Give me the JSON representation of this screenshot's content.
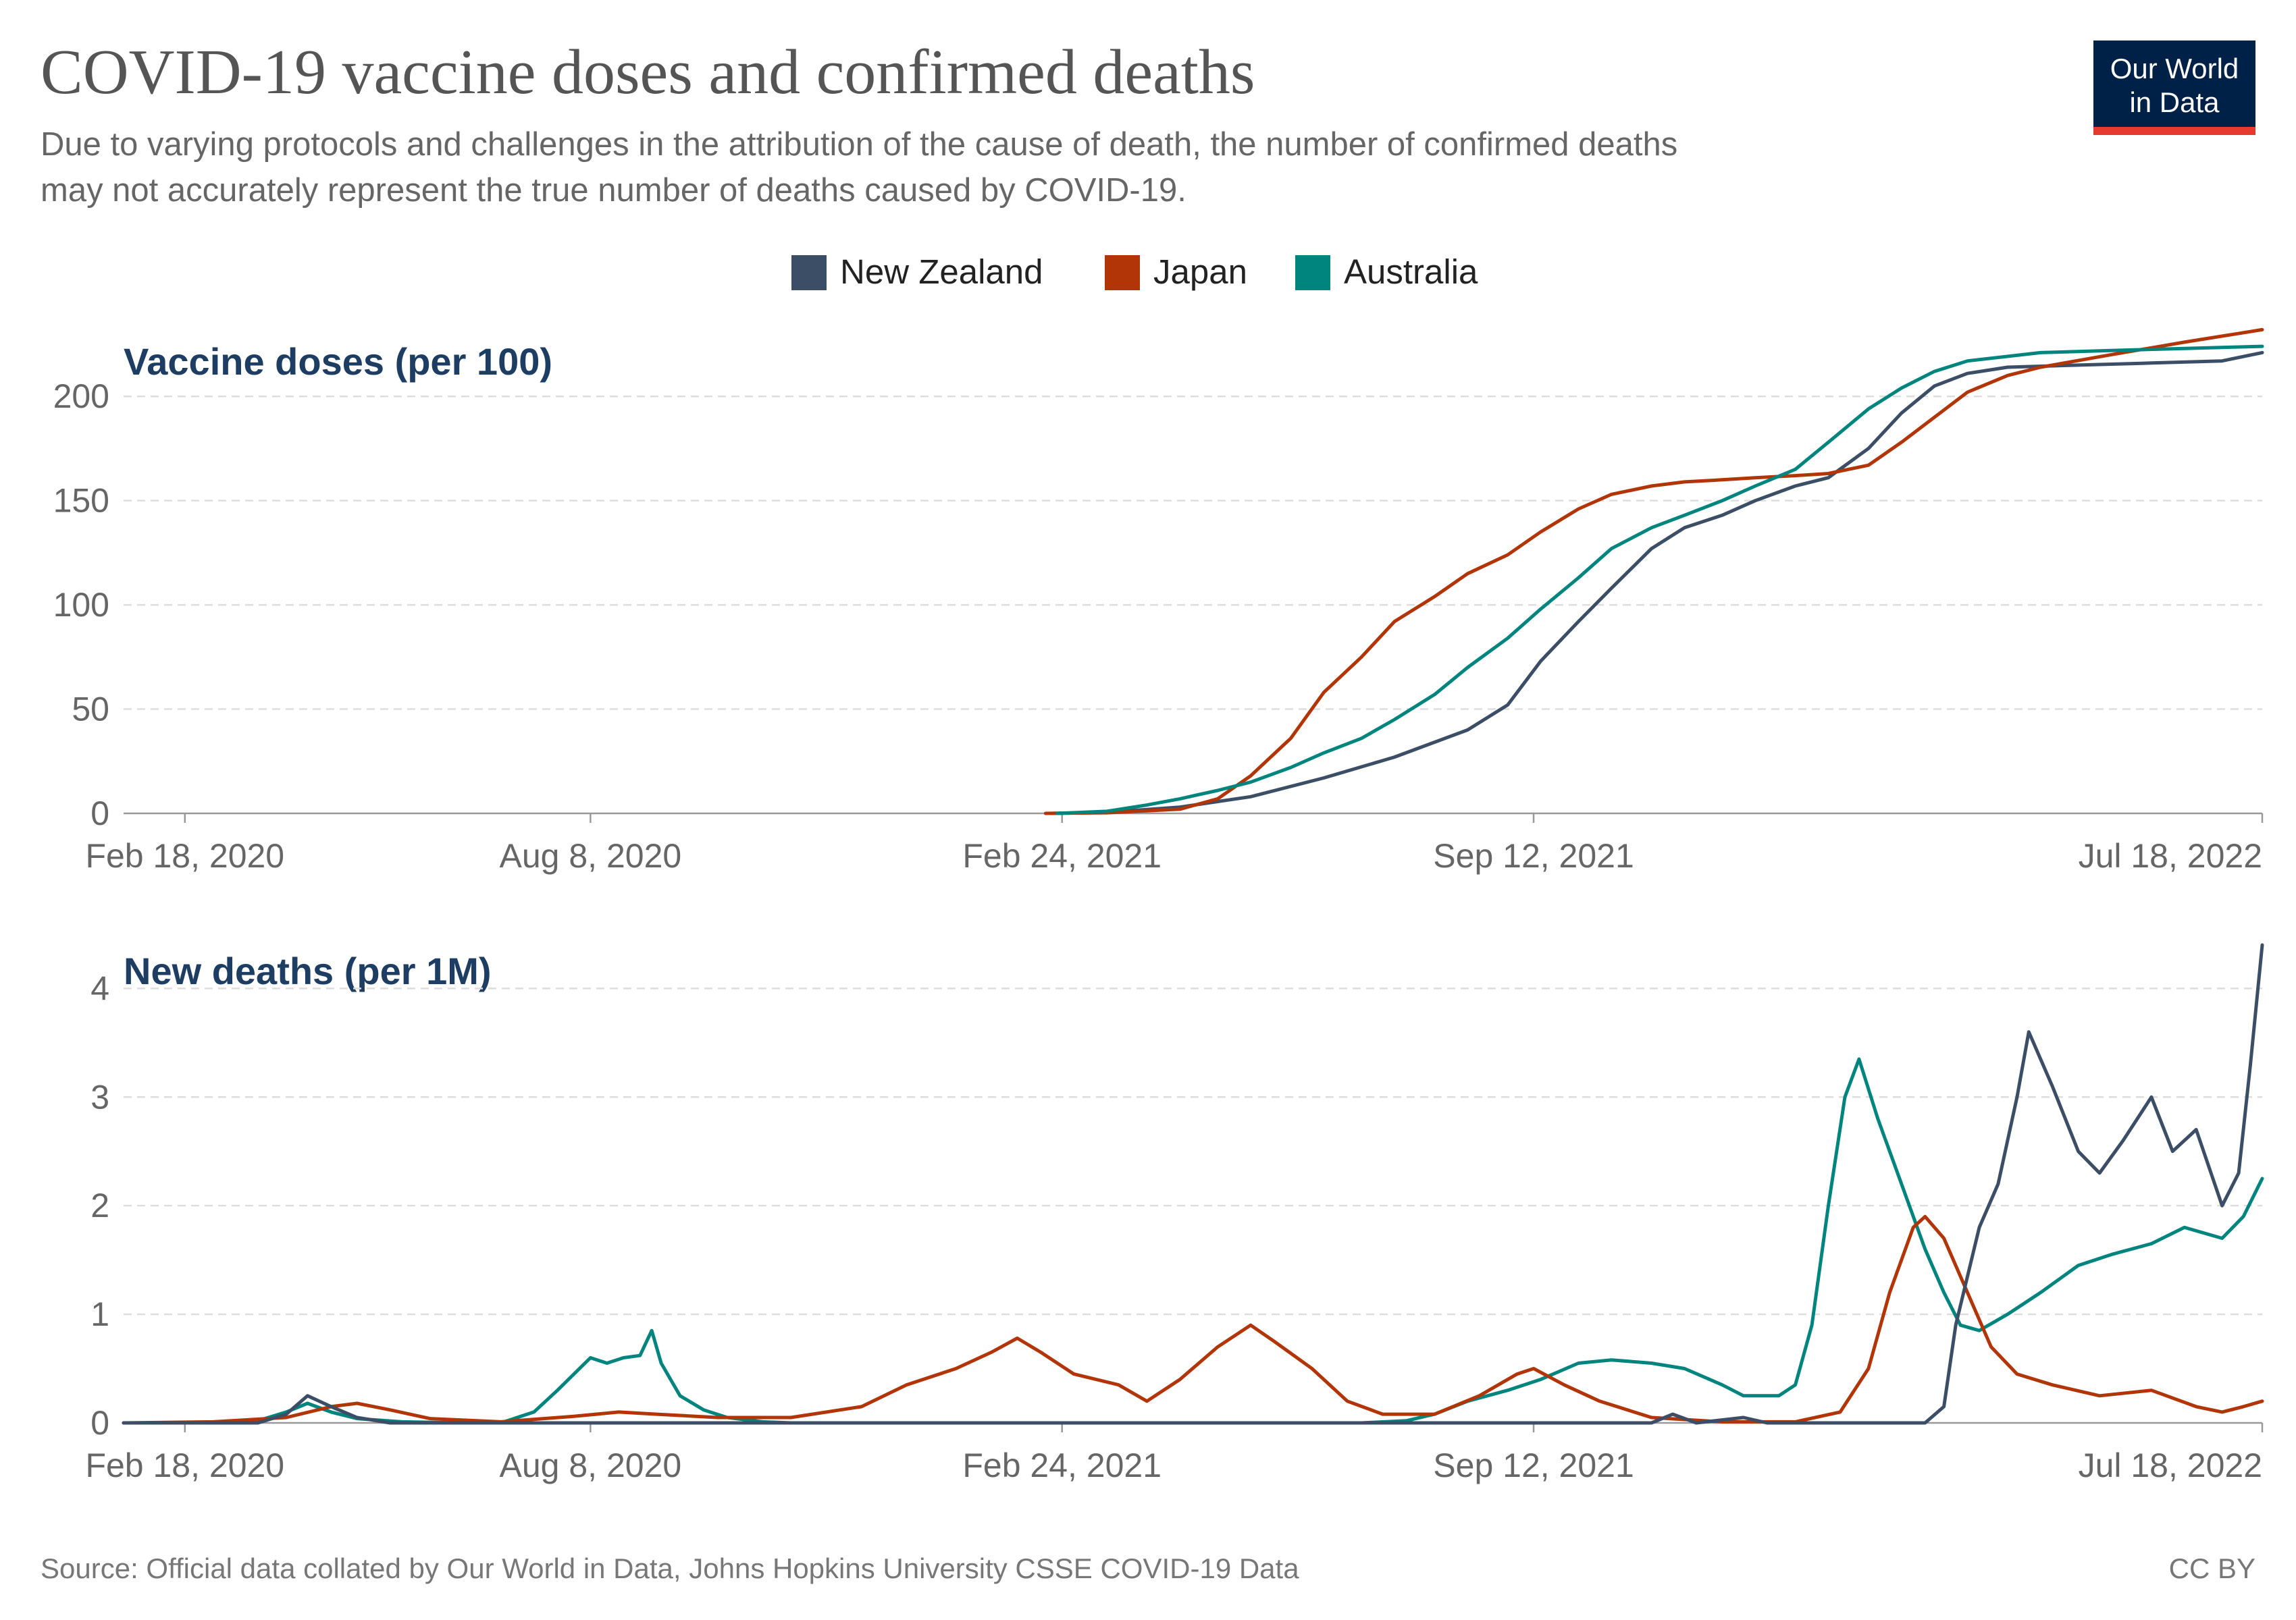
{
  "title": "COVID-19 vaccine doses and confirmed deaths",
  "subtitle": [
    "Due to varying protocols and challenges in the attribution of the cause of death, the number of confirmed deaths",
    "may not accurately represent the true number of deaths caused by COVID-19."
  ],
  "logo": {
    "line1": "Our World",
    "line2": "in Data",
    "bg": "#002147",
    "accent": "#e63a2e"
  },
  "source": "Source: Official data collated by Our World in Data, Johns Hopkins University CSSE COVID-19 Data",
  "license": "CC BY",
  "colors": {
    "New Zealand": "#3c4e66",
    "Japan": "#b13507",
    "Australia": "#00847e"
  },
  "legend": [
    "New Zealand",
    "Japan",
    "Australia"
  ],
  "chart_data": [
    {
      "type": "line",
      "title": "Vaccine doses (per 100)",
      "x_range": [
        "2020-01-23",
        "2022-07-18"
      ],
      "x_ticks": [
        {
          "date": "2020-02-18",
          "label": "Feb 18, 2020"
        },
        {
          "date": "2020-08-08",
          "label": "Aug 8, 2020"
        },
        {
          "date": "2021-02-24",
          "label": "Feb 24, 2021"
        },
        {
          "date": "2021-09-12",
          "label": "Sep 12, 2021"
        },
        {
          "date": "2022-07-18",
          "label": "Jul 18, 2022"
        }
      ],
      "ylim": [
        0,
        225
      ],
      "y_ticks": [
        0,
        50,
        100,
        150,
        200
      ],
      "grid": true,
      "series": [
        {
          "name": "New Zealand",
          "points": [
            [
              "2021-02-19",
              0
            ],
            [
              "2021-03-15",
              0.5
            ],
            [
              "2021-04-15",
              3
            ],
            [
              "2021-05-15",
              8
            ],
            [
              "2021-06-15",
              17
            ],
            [
              "2021-07-15",
              27
            ],
            [
              "2021-08-15",
              40
            ],
            [
              "2021-09-01",
              52
            ],
            [
              "2021-09-15",
              73
            ],
            [
              "2021-10-01",
              92
            ],
            [
              "2021-10-15",
              108
            ],
            [
              "2021-11-01",
              127
            ],
            [
              "2021-11-15",
              137
            ],
            [
              "2021-12-01",
              143
            ],
            [
              "2021-12-15",
              150
            ],
            [
              "2022-01-01",
              157
            ],
            [
              "2022-01-15",
              161
            ],
            [
              "2022-02-01",
              175
            ],
            [
              "2022-02-15",
              192
            ],
            [
              "2022-03-01",
              205
            ],
            [
              "2022-03-15",
              211
            ],
            [
              "2022-04-01",
              214
            ],
            [
              "2022-05-01",
              215
            ],
            [
              "2022-06-01",
              216
            ],
            [
              "2022-07-01",
              217
            ],
            [
              "2022-07-18",
              221
            ]
          ]
        },
        {
          "name": "Japan",
          "points": [
            [
              "2021-02-17",
              0
            ],
            [
              "2021-03-15",
              0.3
            ],
            [
              "2021-04-15",
              2
            ],
            [
              "2021-05-01",
              7
            ],
            [
              "2021-05-15",
              18
            ],
            [
              "2021-06-01",
              36
            ],
            [
              "2021-06-15",
              58
            ],
            [
              "2021-07-01",
              75
            ],
            [
              "2021-07-15",
              92
            ],
            [
              "2021-08-01",
              104
            ],
            [
              "2021-08-15",
              115
            ],
            [
              "2021-09-01",
              124
            ],
            [
              "2021-09-15",
              135
            ],
            [
              "2021-10-01",
              146
            ],
            [
              "2021-10-15",
              153
            ],
            [
              "2021-11-01",
              157
            ],
            [
              "2021-11-15",
              159
            ],
            [
              "2021-12-01",
              160
            ],
            [
              "2021-12-15",
              161
            ],
            [
              "2022-01-01",
              162
            ],
            [
              "2022-01-15",
              163
            ],
            [
              "2022-02-01",
              167
            ],
            [
              "2022-02-15",
              178
            ],
            [
              "2022-03-01",
              190
            ],
            [
              "2022-03-15",
              202
            ],
            [
              "2022-04-01",
              210
            ],
            [
              "2022-04-15",
              214
            ],
            [
              "2022-05-15",
              220
            ],
            [
              "2022-06-15",
              226
            ],
            [
              "2022-07-18",
              232
            ]
          ]
        },
        {
          "name": "Australia",
          "points": [
            [
              "2021-02-22",
              0
            ],
            [
              "2021-03-15",
              1
            ],
            [
              "2021-04-01",
              4
            ],
            [
              "2021-04-15",
              7
            ],
            [
              "2021-05-01",
              11
            ],
            [
              "2021-05-15",
              15
            ],
            [
              "2021-06-01",
              22
            ],
            [
              "2021-06-15",
              29
            ],
            [
              "2021-07-01",
              36
            ],
            [
              "2021-07-15",
              45
            ],
            [
              "2021-08-01",
              57
            ],
            [
              "2021-08-15",
              70
            ],
            [
              "2021-09-01",
              84
            ],
            [
              "2021-09-15",
              98
            ],
            [
              "2021-10-01",
              113
            ],
            [
              "2021-10-15",
              127
            ],
            [
              "2021-11-01",
              137
            ],
            [
              "2021-11-15",
              143
            ],
            [
              "2021-12-01",
              150
            ],
            [
              "2021-12-15",
              157
            ],
            [
              "2022-01-01",
              165
            ],
            [
              "2022-01-15",
              178
            ],
            [
              "2022-02-01",
              194
            ],
            [
              "2022-02-15",
              204
            ],
            [
              "2022-03-01",
              212
            ],
            [
              "2022-03-15",
              217
            ],
            [
              "2022-04-15",
              221
            ],
            [
              "2022-05-15",
              222
            ],
            [
              "2022-06-15",
              223
            ],
            [
              "2022-07-18",
              224
            ]
          ]
        }
      ]
    },
    {
      "type": "line",
      "title": "New deaths (per 1M)",
      "x_range": [
        "2020-01-23",
        "2022-07-18"
      ],
      "x_ticks": [
        {
          "date": "2020-02-18",
          "label": "Feb 18, 2020"
        },
        {
          "date": "2020-08-08",
          "label": "Aug 8, 2020"
        },
        {
          "date": "2021-02-24",
          "label": "Feb 24, 2021"
        },
        {
          "date": "2021-09-12",
          "label": "Sep 12, 2021"
        },
        {
          "date": "2022-07-18",
          "label": "Jul 18, 2022"
        }
      ],
      "ylim": [
        0,
        4.4
      ],
      "y_ticks": [
        0,
        1,
        2,
        3,
        4
      ],
      "grid": true,
      "series": [
        {
          "name": "Australia",
          "points": [
            [
              "2020-01-23",
              0
            ],
            [
              "2020-03-01",
              0
            ],
            [
              "2020-03-20",
              0.02
            ],
            [
              "2020-04-01",
              0.1
            ],
            [
              "2020-04-10",
              0.18
            ],
            [
              "2020-04-20",
              0.1
            ],
            [
              "2020-05-01",
              0.04
            ],
            [
              "2020-05-20",
              0.01
            ],
            [
              "2020-06-15",
              0
            ],
            [
              "2020-07-01",
              0
            ],
            [
              "2020-07-15",
              0.1
            ],
            [
              "2020-07-25",
              0.3
            ],
            [
              "2020-08-01",
              0.45
            ],
            [
              "2020-08-08",
              0.6
            ],
            [
              "2020-08-15",
              0.55
            ],
            [
              "2020-08-22",
              0.6
            ],
            [
              "2020-08-29",
              0.62
            ],
            [
              "2020-09-03",
              0.85
            ],
            [
              "2020-09-07",
              0.55
            ],
            [
              "2020-09-15",
              0.25
            ],
            [
              "2020-09-25",
              0.12
            ],
            [
              "2020-10-05",
              0.05
            ],
            [
              "2020-10-20",
              0.01
            ],
            [
              "2020-11-01",
              0
            ],
            [
              "2021-07-01",
              0
            ],
            [
              "2021-07-20",
              0.02
            ],
            [
              "2021-08-01",
              0.08
            ],
            [
              "2021-08-15",
              0.2
            ],
            [
              "2021-09-01",
              0.3
            ],
            [
              "2021-09-15",
              0.4
            ],
            [
              "2021-10-01",
              0.55
            ],
            [
              "2021-10-15",
              0.58
            ],
            [
              "2021-11-01",
              0.55
            ],
            [
              "2021-11-15",
              0.5
            ],
            [
              "2021-12-01",
              0.35
            ],
            [
              "2021-12-10",
              0.25
            ],
            [
              "2021-12-25",
              0.25
            ],
            [
              "2022-01-01",
              0.35
            ],
            [
              "2022-01-08",
              0.9
            ],
            [
              "2022-01-15",
              2.0
            ],
            [
              "2022-01-22",
              3.0
            ],
            [
              "2022-01-28",
              3.35
            ],
            [
              "2022-02-05",
              2.8
            ],
            [
              "2022-02-15",
              2.2
            ],
            [
              "2022-02-25",
              1.6
            ],
            [
              "2022-03-05",
              1.2
            ],
            [
              "2022-03-12",
              0.9
            ],
            [
              "2022-03-20",
              0.85
            ],
            [
              "2022-04-01",
              1.0
            ],
            [
              "2022-04-15",
              1.2
            ],
            [
              "2022-05-01",
              1.45
            ],
            [
              "2022-05-15",
              1.55
            ],
            [
              "2022-06-01",
              1.65
            ],
            [
              "2022-06-15",
              1.8
            ],
            [
              "2022-07-01",
              1.7
            ],
            [
              "2022-07-10",
              1.9
            ],
            [
              "2022-07-18",
              2.25
            ]
          ]
        },
        {
          "name": "Japan",
          "points": [
            [
              "2020-01-23",
              0
            ],
            [
              "2020-03-01",
              0.01
            ],
            [
              "2020-04-01",
              0.05
            ],
            [
              "2020-04-20",
              0.15
            ],
            [
              "2020-05-01",
              0.18
            ],
            [
              "2020-05-15",
              0.12
            ],
            [
              "2020-06-01",
              0.04
            ],
            [
              "2020-07-01",
              0.01
            ],
            [
              "2020-08-01",
              0.06
            ],
            [
              "2020-08-20",
              0.1
            ],
            [
              "2020-09-05",
              0.08
            ],
            [
              "2020-10-01",
              0.05
            ],
            [
              "2020-11-01",
              0.05
            ],
            [
              "2020-12-01",
              0.15
            ],
            [
              "2020-12-20",
              0.35
            ],
            [
              "2021-01-10",
              0.5
            ],
            [
              "2021-01-25",
              0.65
            ],
            [
              "2021-02-05",
              0.78
            ],
            [
              "2021-02-15",
              0.65
            ],
            [
              "2021-03-01",
              0.45
            ],
            [
              "2021-03-20",
              0.35
            ],
            [
              "2021-04-01",
              0.2
            ],
            [
              "2021-04-15",
              0.4
            ],
            [
              "2021-05-01",
              0.7
            ],
            [
              "2021-05-15",
              0.9
            ],
            [
              "2021-05-25",
              0.75
            ],
            [
              "2021-06-10",
              0.5
            ],
            [
              "2021-06-25",
              0.2
            ],
            [
              "2021-07-10",
              0.08
            ],
            [
              "2021-08-01",
              0.08
            ],
            [
              "2021-08-20",
              0.25
            ],
            [
              "2021-09-05",
              0.45
            ],
            [
              "2021-09-12",
              0.5
            ],
            [
              "2021-09-25",
              0.35
            ],
            [
              "2021-10-10",
              0.2
            ],
            [
              "2021-11-01",
              0.05
            ],
            [
              "2021-12-01",
              0.01
            ],
            [
              "2022-01-01",
              0.01
            ],
            [
              "2022-01-20",
              0.1
            ],
            [
              "2022-02-01",
              0.5
            ],
            [
              "2022-02-10",
              1.2
            ],
            [
              "2022-02-20",
              1.8
            ],
            [
              "2022-02-25",
              1.9
            ],
            [
              "2022-03-05",
              1.7
            ],
            [
              "2022-03-15",
              1.2
            ],
            [
              "2022-03-25",
              0.7
            ],
            [
              "2022-04-05",
              0.45
            ],
            [
              "2022-04-20",
              0.35
            ],
            [
              "2022-05-10",
              0.25
            ],
            [
              "2022-06-01",
              0.3
            ],
            [
              "2022-06-20",
              0.15
            ],
            [
              "2022-07-01",
              0.1
            ],
            [
              "2022-07-10",
              0.15
            ],
            [
              "2022-07-18",
              0.2
            ]
          ]
        },
        {
          "name": "New Zealand",
          "points": [
            [
              "2020-01-23",
              0
            ],
            [
              "2020-03-20",
              0
            ],
            [
              "2020-04-01",
              0.08
            ],
            [
              "2020-04-10",
              0.25
            ],
            [
              "2020-04-20",
              0.15
            ],
            [
              "2020-05-01",
              0.05
            ],
            [
              "2020-05-15",
              0
            ],
            [
              "2021-11-01",
              0
            ],
            [
              "2021-11-10",
              0.08
            ],
            [
              "2021-11-20",
              0
            ],
            [
              "2021-12-10",
              0.05
            ],
            [
              "2021-12-20",
              0
            ],
            [
              "2022-02-25",
              0
            ],
            [
              "2022-03-05",
              0.15
            ],
            [
              "2022-03-10",
              0.9
            ],
            [
              "2022-03-20",
              1.8
            ],
            [
              "2022-03-28",
              2.2
            ],
            [
              "2022-04-05",
              3.0
            ],
            [
              "2022-04-10",
              3.6
            ],
            [
              "2022-04-20",
              3.1
            ],
            [
              "2022-05-01",
              2.5
            ],
            [
              "2022-05-10",
              2.3
            ],
            [
              "2022-05-20",
              2.6
            ],
            [
              "2022-06-01",
              3.0
            ],
            [
              "2022-06-10",
              2.5
            ],
            [
              "2022-06-20",
              2.7
            ],
            [
              "2022-07-01",
              2.0
            ],
            [
              "2022-07-08",
              2.3
            ],
            [
              "2022-07-13",
              3.3
            ],
            [
              "2022-07-18",
              4.4
            ]
          ]
        }
      ]
    }
  ]
}
